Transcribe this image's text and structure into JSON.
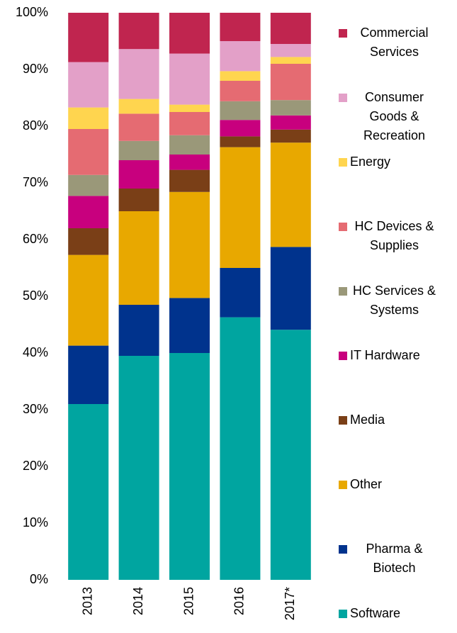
{
  "chart_data": {
    "type": "stacked_bar",
    "categories": [
      "2013",
      "2014",
      "2015",
      "2016",
      "2017*"
    ],
    "series": [
      {
        "name": "Software",
        "color": "#00a5a0",
        "values": [
          31,
          39.5,
          40,
          46.3,
          44.1
        ]
      },
      {
        "name": "Pharma & Biotech",
        "color": "#00338d",
        "values": [
          10.3,
          9,
          9.7,
          8.7,
          14.6
        ]
      },
      {
        "name": "Other",
        "color": "#e8a800",
        "values": [
          16,
          16.5,
          18.7,
          21.3,
          18.4
        ]
      },
      {
        "name": "Media",
        "color": "#7a3f17",
        "values": [
          4.7,
          4,
          3.9,
          1.9,
          2.3
        ]
      },
      {
        "name": "IT Hardware",
        "color": "#c8007e",
        "values": [
          5.7,
          5,
          2.7,
          2.9,
          2.5
        ]
      },
      {
        "name": "HC Services & Systems",
        "color": "#9a9879",
        "values": [
          3.7,
          3.4,
          3.4,
          3.3,
          2.7
        ]
      },
      {
        "name": "HC Devices & Supplies",
        "color": "#e56b72",
        "values": [
          8.1,
          4.8,
          4.1,
          3.6,
          6.4
        ]
      },
      {
        "name": "Energy",
        "color": "#ffd54f",
        "values": [
          3.8,
          2.6,
          1.3,
          1.7,
          1.2
        ]
      },
      {
        "name": "Consumer Goods & Recreation",
        "color": "#e3a0c8",
        "values": [
          8,
          8.8,
          9,
          5.3,
          2.3
        ]
      },
      {
        "name": "Commercial Services",
        "color": "#c0254f",
        "values": [
          8.7,
          6.4,
          7.2,
          5,
          5.5
        ]
      }
    ],
    "ylim": [
      0,
      100
    ],
    "yticks": [
      {
        "value": 0,
        "label": "0%"
      },
      {
        "value": 10,
        "label": "10%"
      },
      {
        "value": 20,
        "label": "20%"
      },
      {
        "value": 30,
        "label": "30%"
      },
      {
        "value": 40,
        "label": "40%"
      },
      {
        "value": 50,
        "label": "50%"
      },
      {
        "value": 60,
        "label": "60%"
      },
      {
        "value": 70,
        "label": "70%"
      },
      {
        "value": 80,
        "label": "80%"
      },
      {
        "value": 90,
        "label": "90%"
      },
      {
        "value": 100,
        "label": "100%"
      }
    ],
    "legend": "right"
  }
}
